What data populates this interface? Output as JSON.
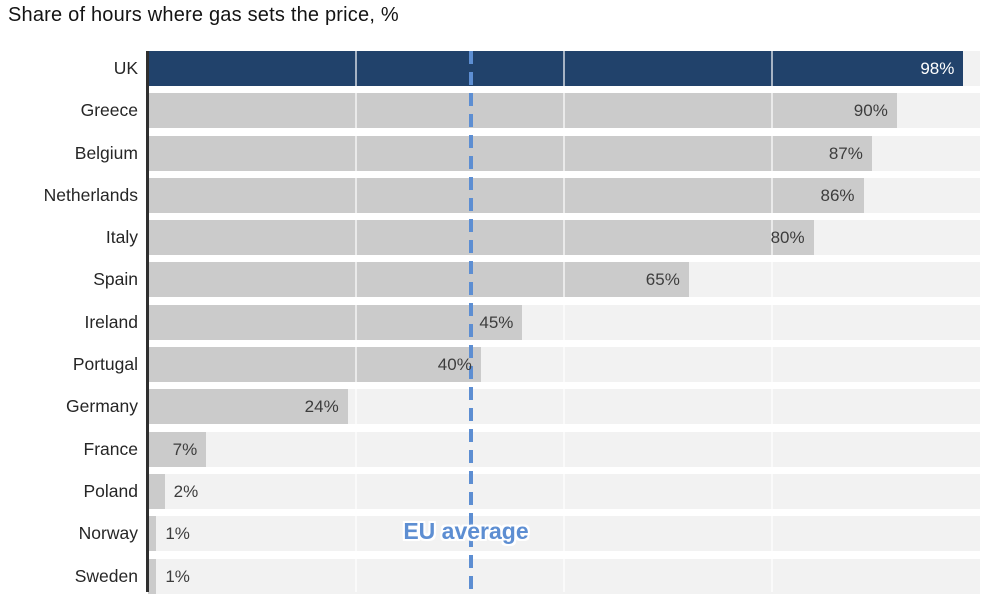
{
  "chart_data": {
    "type": "bar",
    "orientation": "horizontal",
    "title": "Share of hours where gas sets the price, %",
    "categories": [
      "UK",
      "Greece",
      "Belgium",
      "Netherlands",
      "Italy",
      "Spain",
      "Ireland",
      "Portugal",
      "Germany",
      "France",
      "Poland",
      "Norway",
      "Sweden"
    ],
    "values": [
      98,
      90,
      87,
      86,
      80,
      65,
      45,
      40,
      24,
      7,
      2,
      1,
      1
    ],
    "value_labels": [
      "98%",
      "90%",
      "87%",
      "86%",
      "80%",
      "65%",
      "45%",
      "40%",
      "24%",
      "7%",
      "2%",
      "1%",
      "1%"
    ],
    "xlabel": "",
    "ylabel": "",
    "xlim": [
      0,
      100
    ],
    "grid": true,
    "gridlines_pct": [
      25,
      50,
      75
    ],
    "highlight_category": "UK",
    "annotation": {
      "label": "EU average",
      "value_pct": 38.8
    },
    "colors": {
      "highlight_bar": "#21426b",
      "bar": "#cbcbcb",
      "row_band": "#f2f2f2",
      "gridline": "rgba(255,255,255,0.6)",
      "annotation_line": "#5d8ed2",
      "annotation_text": "#5d8ed2",
      "value_label": "#3d3d3d",
      "value_label_on_highlight": "#ffffff",
      "category_label": "#262626",
      "axis_line": "#2f2f2f",
      "title": "#141414"
    }
  }
}
